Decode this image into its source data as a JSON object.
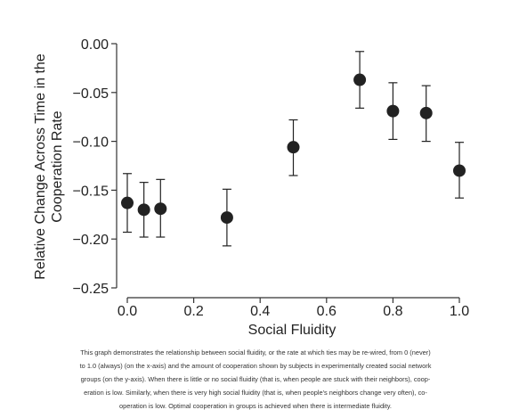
{
  "chart_data": {
    "type": "scatter",
    "xlabel": "Social Fluidity",
    "ylabel_lines": [
      "Relative Change Across Time in the",
      "Cooperation Rate"
    ],
    "xlim": [
      0.0,
      1.0
    ],
    "ylim": [
      -0.25,
      0.0
    ],
    "x_ticks": [
      "0.0",
      "0.2",
      "0.4",
      "0.6",
      "0.8",
      "1.0"
    ],
    "y_ticks": [
      "0.00",
      "−0.05",
      "−0.10",
      "−0.15",
      "−0.20",
      "−0.25"
    ],
    "points": [
      {
        "x": 0.0,
        "y": -0.163,
        "low": -0.193,
        "high": -0.133
      },
      {
        "x": 0.05,
        "y": -0.17,
        "low": -0.198,
        "high": -0.142
      },
      {
        "x": 0.1,
        "y": -0.169,
        "low": -0.198,
        "high": -0.139
      },
      {
        "x": 0.3,
        "y": -0.178,
        "low": -0.207,
        "high": -0.149
      },
      {
        "x": 0.5,
        "y": -0.106,
        "low": -0.135,
        "high": -0.078
      },
      {
        "x": 0.7,
        "y": -0.037,
        "low": -0.066,
        "high": -0.008
      },
      {
        "x": 0.8,
        "y": -0.069,
        "low": -0.098,
        "high": -0.04
      },
      {
        "x": 0.9,
        "y": -0.071,
        "low": -0.1,
        "high": -0.043
      },
      {
        "x": 1.0,
        "y": -0.13,
        "low": -0.158,
        "high": -0.101
      }
    ],
    "grid": false,
    "marker_color": "#222222"
  },
  "caption_lines": [
    "This graph demonstrates the relationship between social fluidity, or the rate at which ties may be re-wired, from 0 (never)",
    "to 1.0 (always) (on the x-axis) and the amount of cooperation shown by subjects in experimentally created social network",
    "groups (on the y-axis). When there is little or no social fluidity (that is, when people are stuck with their neighbors), coop-",
    "eration is low. Similarly, when there is very high social fluidity (that is, when people's neighbors change very often), co-",
    "operation is low. Optimal cooperation in groups is achieved when there is intermediate fluidity."
  ]
}
